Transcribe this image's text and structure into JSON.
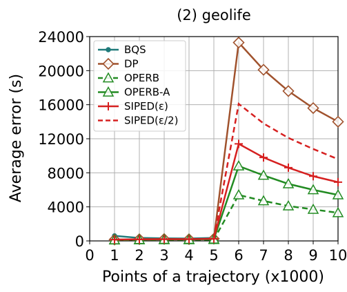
{
  "chart_data": {
    "type": "line",
    "title": "(2) geolife",
    "xlabel": "Points of a trajectory (x1000)",
    "ylabel": "Average error (s)",
    "xlim": [
      0,
      10
    ],
    "ylim": [
      0,
      24000
    ],
    "xticks": [
      0,
      1,
      2,
      3,
      4,
      5,
      6,
      7,
      8,
      9,
      10
    ],
    "yticks": [
      0,
      4000,
      8000,
      12000,
      16000,
      20000,
      24000
    ],
    "grid": true,
    "legend_position": "top-left",
    "x": [
      1,
      2,
      3,
      4,
      5,
      6,
      7,
      8,
      9,
      10
    ],
    "series": [
      {
        "name": "BQS",
        "color": "#1f7a7a",
        "marker": "dot",
        "dash": "solid",
        "values": [
          600,
          350,
          300,
          280,
          350,
          null,
          null,
          null,
          null,
          null
        ]
      },
      {
        "name": "DP",
        "color": "#a0522d",
        "marker": "diamond",
        "dash": "solid",
        "values": [
          150,
          200,
          220,
          200,
          250,
          23300,
          20100,
          17600,
          15600,
          14000
        ]
      },
      {
        "name": "OPERB",
        "color": "#228b22",
        "marker": "triangle",
        "dash": "dashed",
        "values": [
          100,
          120,
          130,
          130,
          150,
          5400,
          4700,
          4100,
          3700,
          3300
        ]
      },
      {
        "name": "OPERB-A",
        "color": "#228b22",
        "marker": "triangle",
        "dash": "solid",
        "values": [
          120,
          150,
          170,
          170,
          200,
          8800,
          7700,
          6700,
          6000,
          5400
        ]
      },
      {
        "name": "SIPED(ε)",
        "color": "#d62020",
        "marker": "plus",
        "dash": "solid",
        "values": [
          150,
          180,
          200,
          200,
          250,
          11400,
          9800,
          8600,
          7600,
          6900
        ]
      },
      {
        "name": "SIPED(ε/2)",
        "color": "#d62020",
        "marker": "none",
        "dash": "dashed",
        "values": [
          null,
          null,
          null,
          null,
          300,
          16100,
          13800,
          12100,
          10800,
          9600
        ]
      }
    ]
  }
}
